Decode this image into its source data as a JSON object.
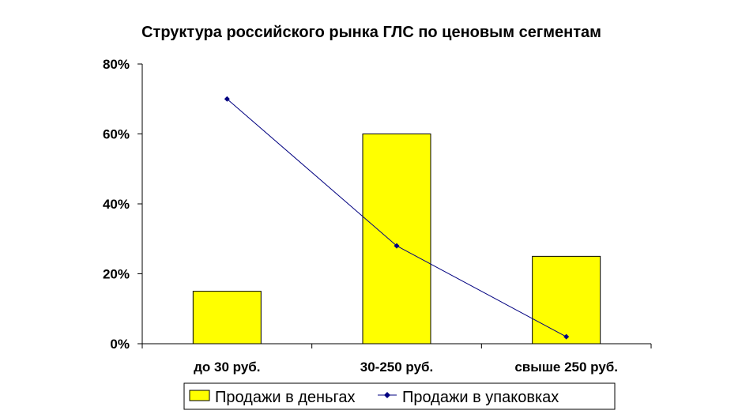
{
  "chart_data": {
    "type": "bar+line",
    "title": "Структура российского рынка ГЛС по ценовым сегментам",
    "categories": [
      "до 30 руб.",
      "30-250 руб.",
      "свыше 250 руб."
    ],
    "series": [
      {
        "name": "Продажи в деньгах",
        "type": "bar",
        "values": [
          15,
          60,
          25
        ],
        "color": "#FFFF00"
      },
      {
        "name": "Продажи в упаковках",
        "type": "line",
        "values": [
          70,
          28,
          2
        ],
        "color": "#000080"
      }
    ],
    "ylim": [
      0,
      80
    ],
    "yticks": [
      "0%",
      "20%",
      "40%",
      "60%",
      "80%"
    ],
    "y_unit": "%",
    "grid": false,
    "legend_position": "bottom"
  }
}
